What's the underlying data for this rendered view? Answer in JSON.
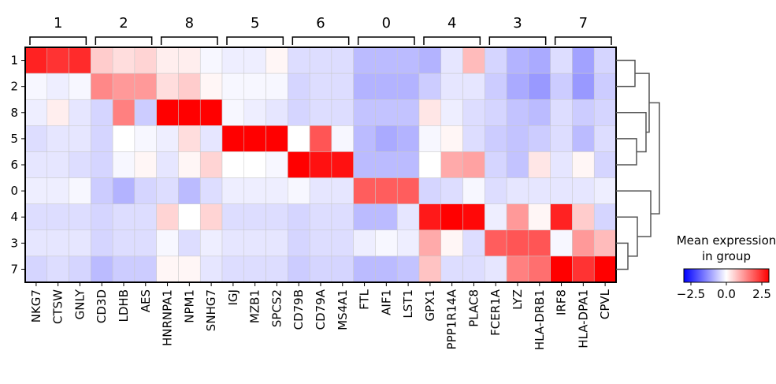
{
  "chart_data": {
    "type": "heatmap",
    "title": "",
    "xlabel": "",
    "ylabel": "",
    "rows": [
      "1",
      "2",
      "8",
      "5",
      "6",
      "0",
      "4",
      "3",
      "7"
    ],
    "cols": [
      "NKG7",
      "CTSW",
      "GNLY",
      "CD3D",
      "LDHB",
      "AES",
      "HNRNPA1",
      "NPM1",
      "SNHG7",
      "IGJ",
      "MZB1",
      "SPCS2",
      "CD79B",
      "CD79A",
      "MS4A1",
      "FTL",
      "AIF1",
      "LST1",
      "GPX1",
      "PPP1R14A",
      "PLAC8",
      "FCER1A",
      "LYZ",
      "HLA-DRB1",
      "IRF8",
      "HLA-DPA1",
      "CPVL"
    ],
    "col_groups": [
      {
        "label": "1",
        "start": 0,
        "end": 2
      },
      {
        "label": "2",
        "start": 3,
        "end": 5
      },
      {
        "label": "8",
        "start": 6,
        "end": 8
      },
      {
        "label": "5",
        "start": 9,
        "end": 11
      },
      {
        "label": "6",
        "start": 12,
        "end": 14
      },
      {
        "label": "0",
        "start": 15,
        "end": 17
      },
      {
        "label": "4",
        "start": 18,
        "end": 20
      },
      {
        "label": "3",
        "start": 21,
        "end": 23
      },
      {
        "label": "7",
        "start": 24,
        "end": 26
      }
    ],
    "values": [
      [
        2.6,
        2.4,
        2.5,
        0.6,
        0.4,
        0.5,
        0.2,
        0.2,
        -0.1,
        -0.2,
        -0.2,
        0.1,
        -0.4,
        -0.4,
        -0.4,
        -0.8,
        -0.8,
        -0.8,
        -0.9,
        -0.3,
        0.8,
        -0.5,
        -0.9,
        -1.0,
        -0.4,
        -1.1,
        -0.5
      ],
      [
        -0.1,
        -0.2,
        -0.1,
        1.4,
        1.2,
        1.2,
        0.4,
        0.6,
        0.1,
        -0.1,
        -0.1,
        -0.1,
        -0.5,
        -0.4,
        -0.4,
        -0.9,
        -0.9,
        -0.9,
        -0.6,
        -0.3,
        -0.3,
        -0.6,
        -1.0,
        -1.2,
        -0.6,
        -1.2,
        -0.6
      ],
      [
        -0.2,
        0.2,
        -0.3,
        -0.5,
        1.5,
        -0.6,
        3.0,
        3.0,
        3.0,
        -0.1,
        -0.2,
        -0.3,
        -0.5,
        -0.4,
        -0.4,
        -0.7,
        -0.7,
        -0.7,
        0.3,
        -0.2,
        -0.4,
        -0.5,
        -0.7,
        -0.8,
        -0.4,
        -0.6,
        -0.5
      ],
      [
        -0.4,
        -0.3,
        -0.3,
        -0.5,
        0.0,
        -0.1,
        -0.2,
        0.4,
        -0.3,
        3.0,
        3.0,
        3.0,
        0.0,
        2.0,
        -0.1,
        -0.8,
        -1.0,
        -0.9,
        -0.1,
        0.1,
        -0.4,
        -0.6,
        -0.7,
        -0.6,
        -0.4,
        -0.8,
        -0.4
      ],
      [
        -0.3,
        -0.3,
        -0.4,
        -0.5,
        -0.1,
        0.1,
        -0.3,
        0.1,
        0.5,
        0.0,
        0.0,
        -0.1,
        3.0,
        2.8,
        2.8,
        -0.8,
        -0.8,
        -0.8,
        0.0,
        1.0,
        1.1,
        -0.5,
        -0.7,
        0.3,
        -0.3,
        0.1,
        -0.5
      ],
      [
        -0.2,
        -0.2,
        -0.1,
        -0.6,
        -0.9,
        -0.5,
        -0.4,
        -0.8,
        -0.4,
        -0.2,
        -0.2,
        -0.2,
        -0.1,
        -0.3,
        -0.3,
        1.9,
        1.9,
        1.9,
        -0.5,
        -0.4,
        -0.1,
        -0.4,
        -0.3,
        -0.3,
        -0.3,
        -0.3,
        -0.2
      ],
      [
        -0.4,
        -0.4,
        -0.4,
        -0.5,
        -0.4,
        -0.4,
        0.5,
        0.0,
        0.5,
        -0.4,
        -0.4,
        -0.4,
        -0.5,
        -0.4,
        -0.4,
        -0.8,
        -0.8,
        -0.3,
        2.7,
        3.0,
        2.9,
        -0.2,
        1.2,
        0.1,
        2.6,
        0.6,
        -0.5
      ],
      [
        -0.3,
        -0.3,
        -0.3,
        -0.5,
        -0.4,
        -0.4,
        -0.1,
        -0.4,
        -0.2,
        -0.3,
        -0.3,
        -0.3,
        -0.5,
        -0.4,
        -0.4,
        -0.2,
        -0.1,
        -0.2,
        1.0,
        0.1,
        -0.4,
        1.9,
        2.0,
        2.0,
        -0.1,
        1.2,
        0.8
      ],
      [
        -0.5,
        -0.4,
        -0.5,
        -0.8,
        -0.6,
        -0.6,
        0.1,
        0.1,
        -0.3,
        -0.4,
        -0.4,
        -0.4,
        -0.6,
        -0.5,
        -0.5,
        -0.8,
        -0.8,
        -0.7,
        0.7,
        -0.4,
        -0.4,
        -0.3,
        1.5,
        1.7,
        3.0,
        2.4,
        3.0
      ]
    ],
    "dendrogram": true,
    "colorbar": {
      "title_line1": "Mean expression",
      "title_line2": "in group",
      "min": -3,
      "max": 3,
      "ticks": [
        "−2.5",
        "0.0",
        "2.5"
      ],
      "tick_values": [
        -2.5,
        0.0,
        2.5
      ],
      "colors": [
        "#0000ff",
        "#ffffff",
        "#ff0000"
      ]
    }
  }
}
